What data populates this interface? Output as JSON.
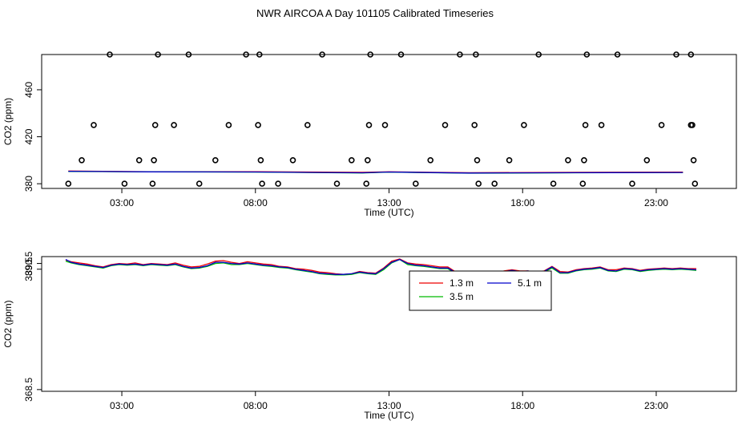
{
  "page_title": "NWR AIRCOA A  Day 101105  Calibrated Timeseries",
  "colors": {
    "red": "#ee0000",
    "green": "#00bb00",
    "blue": "#0000cc",
    "black": "#000000"
  },
  "chart_data": [
    {
      "type": "scatter",
      "name": "top-panel",
      "xlabel": "Time (UTC)",
      "ylabel": "CO2 (ppm)",
      "xlim": [
        0,
        26
      ],
      "ylim": [
        376,
        490
      ],
      "x_ticks": [
        {
          "value": 3,
          "label": "03:00"
        },
        {
          "value": 8,
          "label": "08:00"
        },
        {
          "value": 13,
          "label": "13:00"
        },
        {
          "value": 18,
          "label": "18:00"
        },
        {
          "value": 23,
          "label": "23:00"
        }
      ],
      "y_ticks": [
        {
          "value": 380,
          "label": "380"
        },
        {
          "value": 420,
          "label": "420"
        },
        {
          "value": 460,
          "label": "460"
        }
      ],
      "points": [
        {
          "x": 1.0,
          "y": 380
        },
        {
          "x": 1.5,
          "y": 400
        },
        {
          "x": 1.95,
          "y": 430
        },
        {
          "x": 2.55,
          "y": 490
        },
        {
          "x": 3.1,
          "y": 380
        },
        {
          "x": 3.65,
          "y": 400
        },
        {
          "x": 4.15,
          "y": 380
        },
        {
          "x": 4.2,
          "y": 400
        },
        {
          "x": 4.25,
          "y": 430
        },
        {
          "x": 4.35,
          "y": 490
        },
        {
          "x": 4.95,
          "y": 430
        },
        {
          "x": 5.5,
          "y": 490
        },
        {
          "x": 5.9,
          "y": 380
        },
        {
          "x": 6.5,
          "y": 400
        },
        {
          "x": 7.0,
          "y": 430
        },
        {
          "x": 7.65,
          "y": 490
        },
        {
          "x": 8.1,
          "y": 430
        },
        {
          "x": 8.15,
          "y": 490
        },
        {
          "x": 8.2,
          "y": 400
        },
        {
          "x": 8.25,
          "y": 380
        },
        {
          "x": 8.85,
          "y": 380
        },
        {
          "x": 9.4,
          "y": 400
        },
        {
          "x": 9.95,
          "y": 430
        },
        {
          "x": 10.5,
          "y": 490
        },
        {
          "x": 11.05,
          "y": 380
        },
        {
          "x": 11.6,
          "y": 400
        },
        {
          "x": 12.15,
          "y": 380
        },
        {
          "x": 12.2,
          "y": 400
        },
        {
          "x": 12.25,
          "y": 430
        },
        {
          "x": 12.3,
          "y": 490
        },
        {
          "x": 12.85,
          "y": 430
        },
        {
          "x": 13.45,
          "y": 490
        },
        {
          "x": 14.0,
          "y": 380
        },
        {
          "x": 14.55,
          "y": 400
        },
        {
          "x": 15.1,
          "y": 430
        },
        {
          "x": 15.65,
          "y": 490
        },
        {
          "x": 16.2,
          "y": 430
        },
        {
          "x": 16.25,
          "y": 490
        },
        {
          "x": 16.3,
          "y": 400
        },
        {
          "x": 16.35,
          "y": 380
        },
        {
          "x": 16.95,
          "y": 380
        },
        {
          "x": 17.5,
          "y": 400
        },
        {
          "x": 18.05,
          "y": 430
        },
        {
          "x": 18.6,
          "y": 490
        },
        {
          "x": 19.15,
          "y": 380
        },
        {
          "x": 19.7,
          "y": 400
        },
        {
          "x": 20.25,
          "y": 380
        },
        {
          "x": 20.3,
          "y": 400
        },
        {
          "x": 20.35,
          "y": 430
        },
        {
          "x": 20.4,
          "y": 490
        },
        {
          "x": 20.95,
          "y": 430
        },
        {
          "x": 21.55,
          "y": 490
        },
        {
          "x": 22.1,
          "y": 380
        },
        {
          "x": 22.65,
          "y": 400
        },
        {
          "x": 23.2,
          "y": 430
        },
        {
          "x": 23.75,
          "y": 490
        },
        {
          "x": 24.3,
          "y": 430
        },
        {
          "x": 24.3,
          "y": 490
        },
        {
          "x": 24.35,
          "y": 430
        },
        {
          "x": 24.4,
          "y": 400
        },
        {
          "x": 24.45,
          "y": 380
        }
      ],
      "series": [
        {
          "name": "1.3 m",
          "color": "#ee0000",
          "x": [
            1,
            4,
            8,
            12,
            13,
            16,
            20,
            24
          ],
          "y": [
            390.8,
            390.3,
            390.2,
            389.7,
            390.1,
            389.4,
            389.7,
            389.9
          ]
        },
        {
          "name": "3.5 m",
          "color": "#00bb00",
          "x": [
            1,
            4,
            8,
            12,
            13,
            16,
            20,
            24
          ],
          "y": [
            390.5,
            390.1,
            389.9,
            389.2,
            389.9,
            389.0,
            389.3,
            389.6
          ]
        },
        {
          "name": "5.1 m",
          "color": "#0000cc",
          "x": [
            1,
            4,
            8,
            12,
            13,
            16,
            20,
            24
          ],
          "y": [
            390.6,
            390.1,
            390.0,
            389.3,
            390.0,
            389.1,
            389.4,
            389.6
          ]
        }
      ]
    },
    {
      "type": "line",
      "name": "bottom-panel",
      "xlabel": "Time (UTC)",
      "ylabel": "CO2 (ppm)",
      "xlim": [
        0,
        26
      ],
      "ylim": [
        368.2,
        391.7
      ],
      "x_ticks": [
        {
          "value": 3,
          "label": "03:00"
        },
        {
          "value": 8,
          "label": "08:00"
        },
        {
          "value": 13,
          "label": "13:00"
        },
        {
          "value": 18,
          "label": "18:00"
        },
        {
          "value": 23,
          "label": "23:00"
        }
      ],
      "y_ticks": [
        {
          "value": 368.5,
          "label": "368.5"
        },
        {
          "value": 389.5,
          "label": "389.5"
        },
        {
          "value": 390.5,
          "label": "390.5"
        }
      ],
      "legend": {
        "position": "top-center",
        "entries": [
          "1.3 m",
          "5.1 m",
          "3.5 m"
        ]
      },
      "series": [
        {
          "name": "1.3 m",
          "color": "#ee0000",
          "x": [
            0.9,
            1.1,
            1.4,
            1.7,
            2.0,
            2.3,
            2.6,
            2.9,
            3.2,
            3.5,
            3.8,
            4.1,
            4.4,
            4.7,
            5.0,
            5.3,
            5.6,
            5.9,
            6.2,
            6.5,
            6.8,
            7.1,
            7.4,
            7.7,
            8.0,
            8.3,
            8.6,
            8.9,
            9.2,
            9.5,
            9.8,
            10.1,
            10.4,
            10.7,
            11.0,
            11.3,
            11.6,
            11.9,
            12.2,
            12.5,
            12.8,
            13.1,
            13.4,
            13.7,
            14.0,
            14.3,
            14.6,
            14.9,
            15.2,
            15.5,
            15.8,
            16.1,
            16.4,
            16.7,
            17.0,
            17.3,
            17.6,
            17.9,
            18.2,
            18.5,
            18.8,
            19.1,
            19.4,
            19.7,
            20.0,
            20.3,
            20.6,
            20.9,
            21.2,
            21.5,
            21.8,
            22.1,
            22.4,
            22.7,
            23.0,
            23.3,
            23.6,
            23.9,
            24.2,
            24.5
          ],
          "y": [
            391.1,
            390.8,
            390.6,
            390.4,
            390.1,
            389.9,
            390.3,
            390.5,
            390.4,
            390.6,
            390.3,
            390.5,
            390.4,
            390.3,
            390.6,
            390.2,
            389.9,
            390.0,
            390.4,
            390.9,
            391.0,
            390.7,
            390.5,
            390.8,
            390.6,
            390.4,
            390.3,
            390.0,
            389.9,
            389.6,
            389.5,
            389.3,
            389.0,
            388.9,
            388.7,
            388.6,
            388.7,
            389.1,
            388.9,
            388.8,
            389.7,
            390.9,
            391.3,
            390.6,
            390.4,
            390.3,
            390.1,
            389.9,
            389.9,
            389.0,
            388.7,
            388.6,
            388.7,
            388.6,
            388.7,
            389.2,
            389.4,
            389.2,
            389.2,
            389.0,
            389.2,
            390.0,
            389.1,
            389.0,
            389.4,
            389.6,
            389.7,
            389.9,
            389.4,
            389.4,
            389.7,
            389.6,
            389.3,
            389.5,
            389.6,
            389.7,
            389.6,
            389.7,
            389.6,
            389.6
          ]
        },
        {
          "name": "3.5 m",
          "color": "#00bb00",
          "x": [
            0.9,
            1.1,
            1.4,
            1.7,
            2.0,
            2.3,
            2.6,
            2.9,
            3.2,
            3.5,
            3.8,
            4.1,
            4.4,
            4.7,
            5.0,
            5.3,
            5.6,
            5.9,
            6.2,
            6.5,
            6.8,
            7.1,
            7.4,
            7.7,
            8.0,
            8.3,
            8.6,
            8.9,
            9.2,
            9.5,
            9.8,
            10.1,
            10.4,
            10.7,
            11.0,
            11.3,
            11.6,
            11.9,
            12.2,
            12.5,
            12.8,
            13.1,
            13.4,
            13.7,
            14.0,
            14.3,
            14.6,
            14.9,
            15.2,
            15.5,
            15.8,
            16.1,
            16.4,
            16.7,
            17.0,
            17.3,
            17.6,
            17.9,
            18.2,
            18.5,
            18.8,
            19.1,
            19.4,
            19.7,
            20.0,
            20.3,
            20.6,
            20.9,
            21.2,
            21.5,
            21.8,
            22.1,
            22.4,
            22.7,
            23.0,
            23.3,
            23.6,
            23.9,
            24.2,
            24.5
          ],
          "y": [
            390.9,
            390.6,
            390.3,
            390.1,
            389.9,
            389.7,
            390.1,
            390.3,
            390.2,
            390.3,
            390.1,
            390.3,
            390.2,
            390.1,
            390.3,
            389.9,
            389.6,
            389.7,
            390.0,
            390.5,
            390.6,
            390.3,
            390.3,
            390.5,
            390.3,
            390.1,
            390.0,
            389.8,
            389.7,
            389.4,
            389.2,
            389.0,
            388.7,
            388.6,
            388.5,
            388.5,
            388.6,
            388.9,
            388.7,
            388.6,
            389.4,
            390.6,
            391.2,
            390.3,
            390.1,
            390.0,
            389.8,
            389.6,
            389.6,
            388.8,
            388.6,
            388.5,
            388.6,
            388.4,
            388.6,
            389.0,
            389.2,
            389.0,
            389.1,
            388.7,
            389.0,
            389.7,
            388.8,
            388.8,
            389.2,
            389.4,
            389.5,
            389.7,
            389.2,
            389.1,
            389.5,
            389.4,
            389.1,
            389.3,
            389.4,
            389.5,
            389.4,
            389.5,
            389.4,
            389.3
          ]
        },
        {
          "name": "5.1 m",
          "color": "#0000cc",
          "x": [
            0.9,
            1.1,
            1.4,
            1.7,
            2.0,
            2.3,
            2.6,
            2.9,
            3.2,
            3.5,
            3.8,
            4.1,
            4.4,
            4.7,
            5.0,
            5.3,
            5.6,
            5.9,
            6.2,
            6.5,
            6.8,
            7.1,
            7.4,
            7.7,
            8.0,
            8.3,
            8.6,
            8.9,
            9.2,
            9.5,
            9.8,
            10.1,
            10.4,
            10.7,
            11.0,
            11.3,
            11.6,
            11.9,
            12.2,
            12.5,
            12.8,
            13.1,
            13.4,
            13.7,
            14.0,
            14.3,
            14.6,
            14.9,
            15.2,
            15.5,
            15.8,
            16.1,
            16.4,
            16.7,
            17.0,
            17.3,
            17.6,
            17.9,
            18.2,
            18.5,
            18.8,
            19.1,
            19.4,
            19.7,
            20.0,
            20.3,
            20.6,
            20.9,
            21.2,
            21.5,
            21.8,
            22.1,
            22.4,
            22.7,
            23.0,
            23.3,
            23.6,
            23.9,
            24.2,
            24.5
          ],
          "y": [
            391.2,
            390.7,
            390.4,
            390.2,
            390.0,
            389.8,
            390.2,
            390.4,
            390.3,
            390.4,
            390.2,
            390.4,
            390.3,
            390.2,
            390.4,
            390.0,
            389.7,
            389.8,
            390.1,
            390.7,
            390.7,
            390.5,
            390.4,
            390.6,
            390.4,
            390.2,
            390.1,
            389.9,
            389.8,
            389.5,
            389.3,
            389.1,
            388.8,
            388.7,
            388.6,
            388.6,
            388.7,
            389.0,
            388.8,
            388.7,
            389.6,
            390.7,
            391.2,
            390.5,
            390.2,
            390.1,
            389.9,
            389.7,
            389.7,
            388.9,
            388.6,
            388.6,
            388.6,
            388.5,
            388.7,
            389.1,
            389.3,
            389.1,
            389.2,
            388.9,
            389.1,
            389.9,
            388.9,
            388.9,
            389.3,
            389.5,
            389.6,
            389.8,
            389.3,
            389.2,
            389.6,
            389.5,
            389.2,
            389.4,
            389.5,
            389.6,
            389.5,
            389.6,
            389.5,
            389.4
          ]
        }
      ]
    }
  ]
}
